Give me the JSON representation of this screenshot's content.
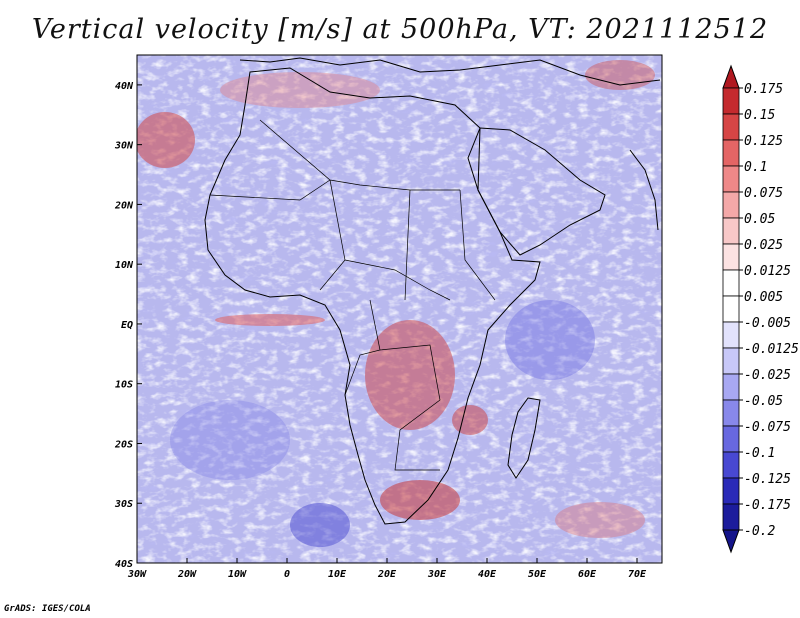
{
  "title": "Vertical velocity [m/s] at 500hPa, VT: 2021112512",
  "footer": "GrADS: IGES/COLA",
  "chart_data": {
    "type": "heatmap",
    "title": "Vertical velocity [m/s] at 500hPa, VT: 2021112512",
    "variable": "Vertical velocity",
    "units": "m/s",
    "level": "500hPa",
    "valid_time": "2021112512",
    "x_ticks": [
      "30W",
      "20W",
      "10W",
      "0",
      "10E",
      "20E",
      "30E",
      "40E",
      "50E",
      "60E",
      "70E"
    ],
    "x_tick_values": [
      -30,
      -20,
      -10,
      0,
      10,
      20,
      30,
      40,
      50,
      60,
      70
    ],
    "y_ticks": [
      "40N",
      "30N",
      "20N",
      "10N",
      "EQ",
      "10S",
      "20S",
      "30S",
      "40S"
    ],
    "y_tick_values": [
      40,
      30,
      20,
      10,
      0,
      -10,
      -20,
      -30,
      -40
    ],
    "xlim": [
      -30,
      75
    ],
    "ylim": [
      -40,
      45
    ],
    "colorbar": {
      "labels": [
        "0.175",
        "0.15",
        "0.125",
        "0.1",
        "0.075",
        "0.05",
        "0.025",
        "0.0125",
        "0.005",
        "-0.005",
        "-0.0125",
        "-0.025",
        "-0.05",
        "-0.075",
        "-0.1",
        "-0.125",
        "-0.175",
        "-0.2"
      ],
      "colors": [
        "#b01820",
        "#c42a2e",
        "#d64545",
        "#e46565",
        "#ee8888",
        "#f4a8a8",
        "#f8c8c8",
        "#fce2e2",
        "#ffffff",
        "#ffffff",
        "#e2e2fc",
        "#c8c8f8",
        "#a8a8f2",
        "#8888ea",
        "#6868e0",
        "#4848d2",
        "#2a2ab8",
        "#1c1c9c",
        "#14148a"
      ]
    },
    "features": [
      "Africa",
      "Arabian Peninsula",
      "Madagascar",
      "Mediterranean"
    ]
  }
}
